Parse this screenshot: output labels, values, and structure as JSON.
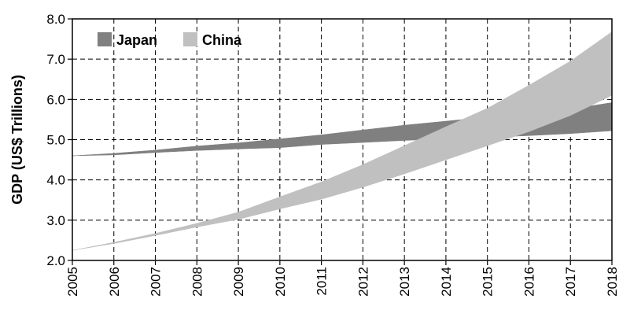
{
  "chart_data": {
    "type": "area",
    "title": "",
    "xlabel": "",
    "ylabel": "GDP (US$ Trillions)",
    "x": [
      2005,
      2006,
      2007,
      2008,
      2009,
      2010,
      2011,
      2012,
      2013,
      2014,
      2015,
      2016,
      2017,
      2018
    ],
    "xlim": [
      2005,
      2018
    ],
    "ylim": [
      2.0,
      8.0
    ],
    "yticks": [
      "2.0",
      "3.0",
      "4.0",
      "5.0",
      "6.0",
      "7.0",
      "8.0"
    ],
    "xticks": [
      "2005",
      "2006",
      "2007",
      "2008",
      "2009",
      "2010",
      "2011",
      "2012",
      "2013",
      "2014",
      "2015",
      "2016",
      "2017",
      "2018"
    ],
    "grid": true,
    "legend_position": "top-left",
    "series": [
      {
        "name": "Japan",
        "color": "#808080",
        "lower": [
          4.6,
          4.62,
          4.68,
          4.73,
          4.77,
          4.8,
          4.88,
          4.93,
          4.98,
          5.02,
          5.06,
          5.1,
          5.15,
          5.22
        ],
        "upper": [
          4.6,
          4.66,
          4.74,
          4.84,
          4.92,
          5.02,
          5.12,
          5.24,
          5.36,
          5.46,
          5.56,
          5.66,
          5.76,
          5.92
        ]
      },
      {
        "name": "China",
        "color": "#c0c0c0",
        "lower": [
          2.25,
          2.42,
          2.62,
          2.83,
          3.02,
          3.28,
          3.52,
          3.82,
          4.15,
          4.5,
          4.85,
          5.2,
          5.6,
          6.1
        ],
        "upper": [
          2.25,
          2.45,
          2.67,
          2.92,
          3.2,
          3.58,
          3.95,
          4.38,
          4.85,
          5.32,
          5.78,
          6.35,
          6.95,
          7.68
        ]
      }
    ]
  }
}
